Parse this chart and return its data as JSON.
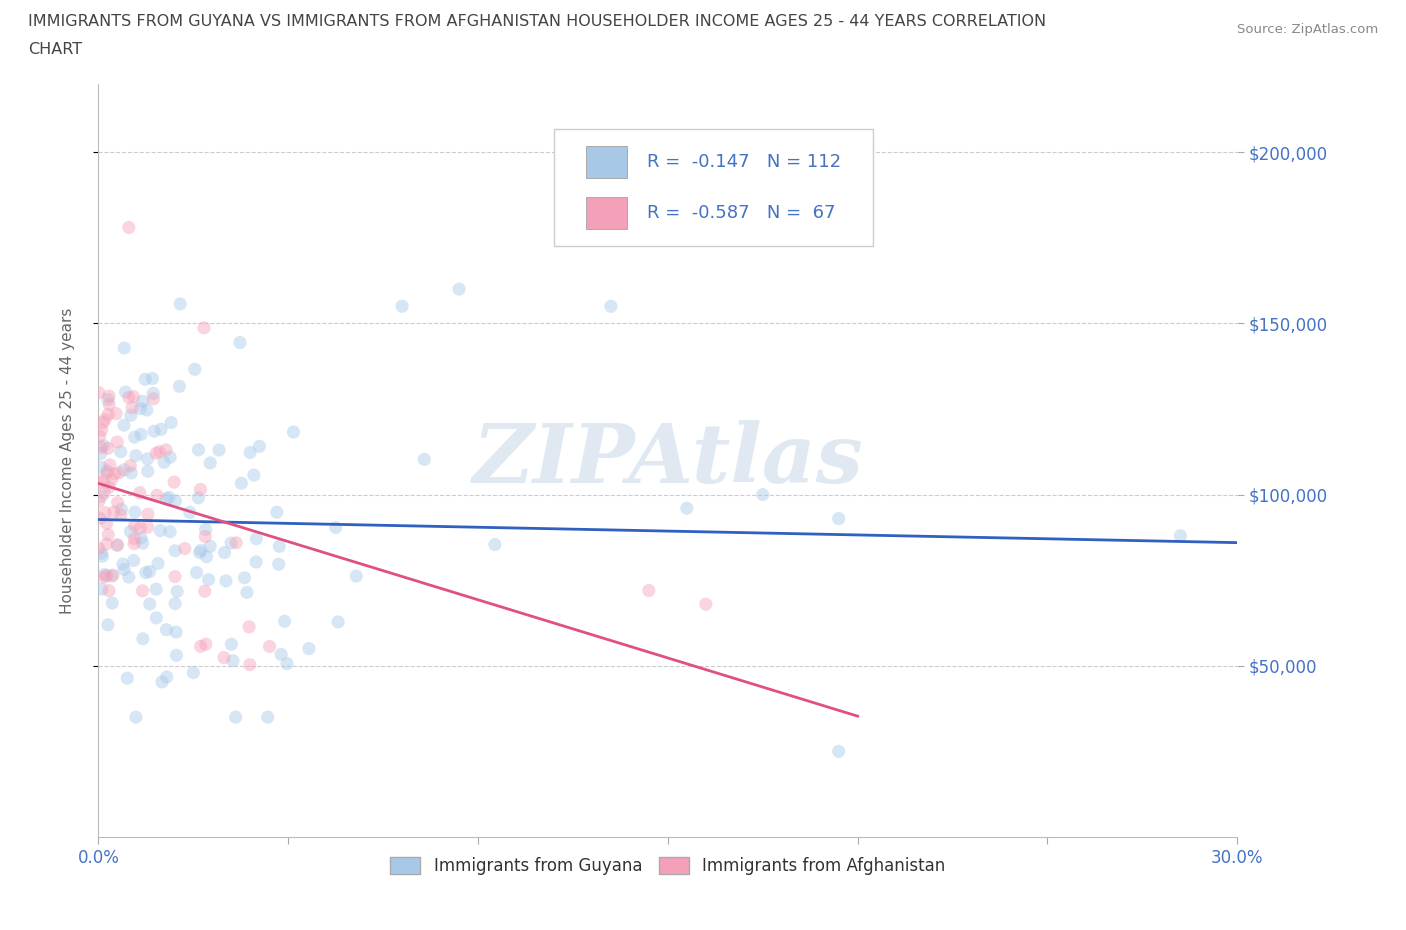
{
  "title_line1": "IMMIGRANTS FROM GUYANA VS IMMIGRANTS FROM AFGHANISTAN HOUSEHOLDER INCOME AGES 25 - 44 YEARS CORRELATION",
  "title_line2": "CHART",
  "source": "Source: ZipAtlas.com",
  "ylabel": "Householder Income Ages 25 - 44 years",
  "guyana_color": "#a8c8e8",
  "afghanistan_color": "#f4a0b8",
  "guyana_line_color": "#3060c0",
  "afghanistan_line_color": "#e05080",
  "guyana_R": -0.147,
  "guyana_N": 112,
  "afghanistan_R": -0.587,
  "afghanistan_N": 67,
  "xlim": [
    0.0,
    0.3
  ],
  "ylim": [
    0,
    220000
  ],
  "yticks": [
    50000,
    100000,
    150000,
    200000
  ],
  "ytick_labels": [
    "$50,000",
    "$100,000",
    "$150,000",
    "$200,000"
  ],
  "xticks": [
    0.0,
    0.05,
    0.1,
    0.15,
    0.2,
    0.25,
    0.3
  ],
  "xtick_labels": [
    "0.0%",
    "",
    "",
    "",
    "",
    "",
    "30.0%"
  ],
  "watermark": "ZIPAtlas",
  "legend_entries": [
    "Immigrants from Guyana",
    "Immigrants from Afghanistan"
  ],
  "background_color": "#ffffff",
  "grid_color": "#cccccc",
  "title_color": "#444444",
  "tick_color": "#4472c4",
  "marker_size": 90,
  "marker_alpha": 0.45
}
